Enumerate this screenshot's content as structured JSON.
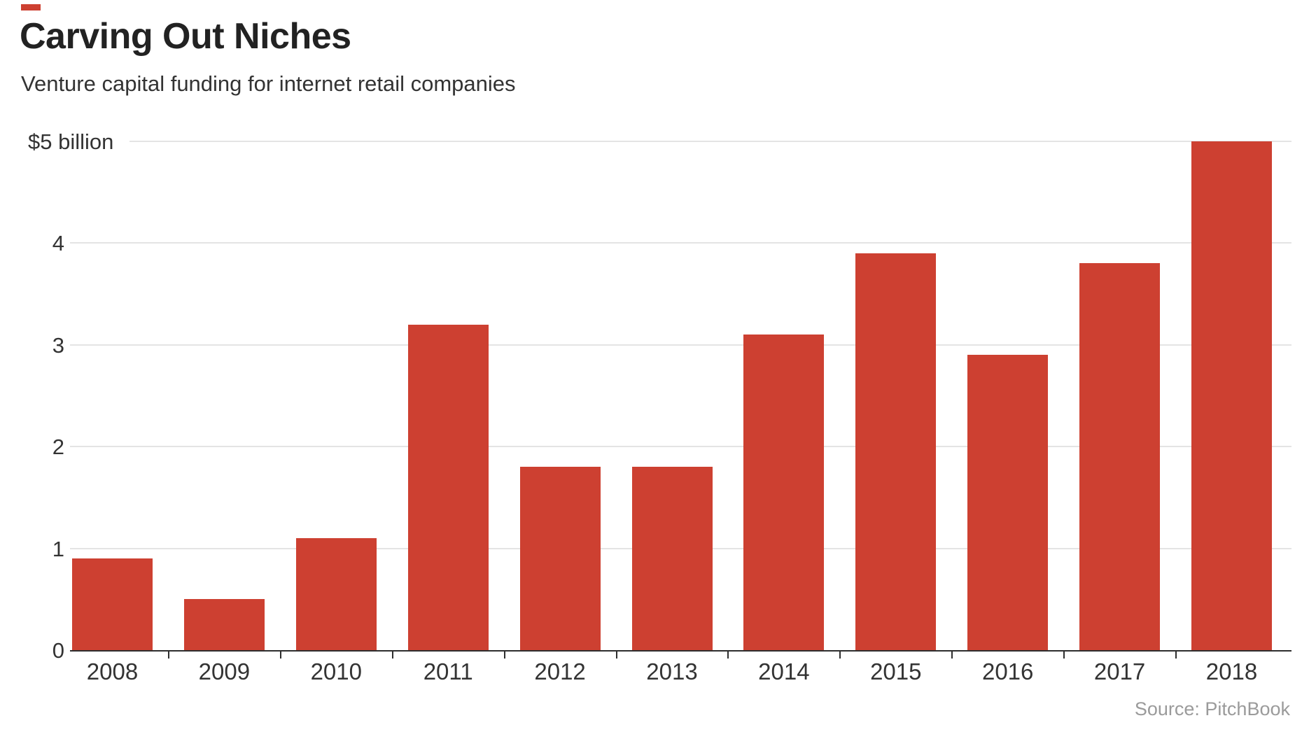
{
  "header": {
    "title": "Carving Out Niches",
    "subtitle": "Venture capital funding for internet retail companies"
  },
  "chart_data": {
    "type": "bar",
    "title": "Carving Out Niches",
    "subtitle": "Venture capital funding for internet retail companies",
    "categories": [
      "2008",
      "2009",
      "2010",
      "2011",
      "2012",
      "2013",
      "2014",
      "2015",
      "2016",
      "2017",
      "2018"
    ],
    "values": [
      0.9,
      0.5,
      1.1,
      3.2,
      1.8,
      1.8,
      3.1,
      3.9,
      2.9,
      3.8,
      5.0
    ],
    "xlabel": "",
    "ylabel": "$ billion",
    "ylim": [
      0,
      5
    ],
    "y_ticks": [
      {
        "value": 0,
        "label": "0"
      },
      {
        "value": 1,
        "label": "1"
      },
      {
        "value": 2,
        "label": "2"
      },
      {
        "value": 3,
        "label": "3"
      },
      {
        "value": 4,
        "label": "4"
      },
      {
        "value": 5,
        "label": "$5 billion"
      }
    ],
    "grid": true,
    "legend": false,
    "bar_color": "#cd4031",
    "gridline_color": "#e4e4e4",
    "axis_color": "#2e2e2e",
    "text_color": "#333333"
  },
  "footer": {
    "source": "Source: PitchBook"
  },
  "accent_color": "#cd4031"
}
